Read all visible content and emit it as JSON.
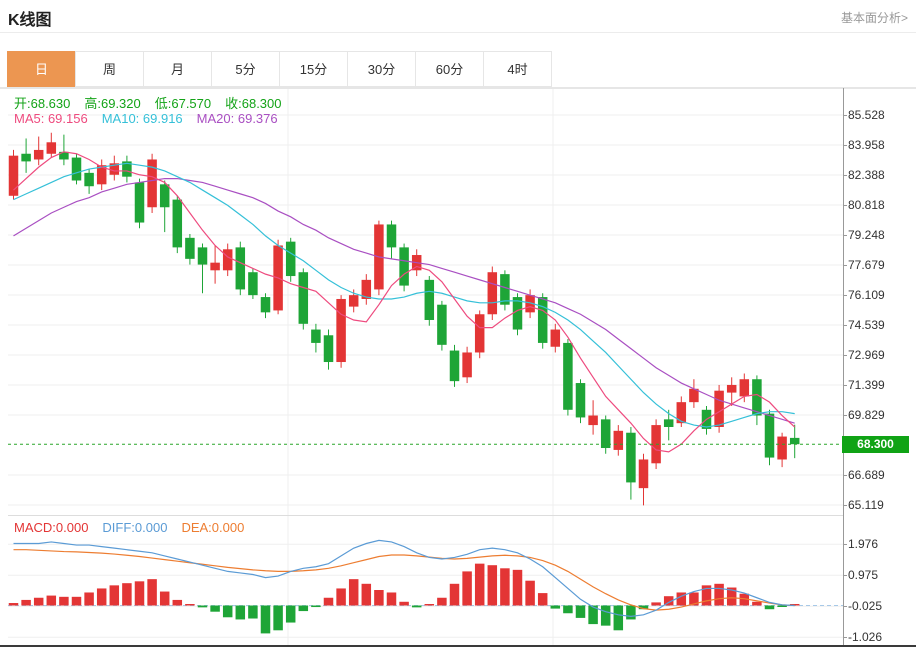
{
  "header": {
    "title": "K线图",
    "link": "基本面分析>"
  },
  "tabs": [
    {
      "name": "tab-day",
      "label": "日",
      "active": true
    },
    {
      "name": "tab-week",
      "label": "周",
      "active": false
    },
    {
      "name": "tab-month",
      "label": "月",
      "active": false
    },
    {
      "name": "tab-5min",
      "label": "5分",
      "active": false
    },
    {
      "name": "tab-15min",
      "label": "15分",
      "active": false
    },
    {
      "name": "tab-30min",
      "label": "30分",
      "active": false
    },
    {
      "name": "tab-60min",
      "label": "60分",
      "active": false
    },
    {
      "name": "tab-4hour",
      "label": "4时",
      "active": false
    }
  ],
  "legends": {
    "ohlc": [
      {
        "name": "ohlc-open",
        "text": "开:68.630",
        "color": "#13A317"
      },
      {
        "name": "ohlc-high",
        "text": "高:69.320",
        "color": "#13A317"
      },
      {
        "name": "ohlc-low",
        "text": "低:67.570",
        "color": "#13A317"
      },
      {
        "name": "ohlc-close",
        "text": "收:68.300",
        "color": "#13A317"
      }
    ],
    "ma": [
      {
        "name": "ma5-legend",
        "text": "MA5: 69.156",
        "color": "#EE4B7F"
      },
      {
        "name": "ma10-legend",
        "text": "MA10: 69.916",
        "color": "#35C0D8"
      },
      {
        "name": "ma20-legend",
        "text": "MA20: 69.376",
        "color": "#A94FC2"
      }
    ],
    "macd": [
      {
        "name": "macd-legend",
        "text": "MACD:0.000",
        "color": "#E33535"
      },
      {
        "name": "diff-legend",
        "text": "DIFF:0.000",
        "color": "#5B9BD5"
      },
      {
        "name": "dea-legend",
        "text": "DEA:0.000",
        "color": "#ED7D31"
      }
    ]
  },
  "price_axis": {
    "ticks": [
      85.528,
      83.958,
      82.388,
      80.818,
      79.248,
      77.679,
      76.109,
      74.539,
      72.969,
      71.399,
      69.829,
      66.689,
      65.119
    ],
    "current_label": "68.300",
    "current_value": 68.3
  },
  "macd_axis": {
    "ticks": [
      1.976,
      0.975,
      -0.025,
      -1.026
    ]
  },
  "colors": {
    "up": "#E33535",
    "down": "#1EA537",
    "ma5": "#EE4B7F",
    "ma10": "#35C0D8",
    "ma20": "#A94FC2",
    "diff": "#5B9BD5",
    "dea": "#ED7D31",
    "accent": "#EC9651",
    "grid": "#EFEFEF",
    "axis": "#999999",
    "dotted_price": "#2AA52A",
    "macd_zero": "#A7C9E8",
    "label_bg": "#10A315"
  },
  "chart_data": {
    "type": "candlestick",
    "title": "K线图",
    "interval": "日",
    "ohlc_last": {
      "open": 68.63,
      "high": 69.32,
      "low": 67.57,
      "close": 68.3
    },
    "ma_last": {
      "ma5": 69.156,
      "ma10": 69.916,
      "ma20": 69.376
    },
    "macd_last": {
      "macd": 0.0,
      "diff": 0.0,
      "dea": 0.0
    },
    "ylim_main": [
      64.6,
      86.3
    ],
    "ylim_macd": [
      -1.36,
      2.31
    ],
    "current_price": 68.3,
    "candles": [
      [
        81.3,
        83.7,
        81.1,
        83.4
      ],
      [
        83.5,
        84.3,
        82.5,
        83.1
      ],
      [
        83.2,
        84.4,
        82.9,
        83.7
      ],
      [
        83.5,
        84.6,
        83.3,
        84.1
      ],
      [
        83.6,
        84.5,
        82.9,
        83.2
      ],
      [
        83.3,
        83.5,
        81.9,
        82.1
      ],
      [
        82.5,
        82.7,
        81.4,
        81.8
      ],
      [
        81.9,
        83.2,
        81.6,
        82.9
      ],
      [
        82.4,
        83.4,
        82.1,
        83.0
      ],
      [
        83.1,
        83.4,
        82.0,
        82.3
      ],
      [
        82.0,
        82.2,
        79.6,
        79.9
      ],
      [
        80.7,
        83.5,
        80.4,
        83.2
      ],
      [
        81.9,
        82.1,
        79.4,
        80.7
      ],
      [
        81.1,
        81.3,
        78.3,
        78.6
      ],
      [
        79.1,
        79.3,
        77.7,
        78.0
      ],
      [
        78.6,
        78.8,
        76.2,
        77.7
      ],
      [
        77.4,
        78.7,
        76.7,
        77.8
      ],
      [
        77.4,
        78.8,
        77.1,
        78.5
      ],
      [
        78.6,
        78.9,
        76.1,
        76.4
      ],
      [
        77.3,
        77.5,
        75.9,
        76.1
      ],
      [
        76.0,
        76.2,
        74.9,
        75.2
      ],
      [
        75.3,
        79.0,
        75.1,
        78.7
      ],
      [
        78.9,
        79.1,
        76.8,
        77.1
      ],
      [
        77.3,
        77.5,
        74.3,
        74.6
      ],
      [
        74.3,
        74.6,
        73.1,
        73.6
      ],
      [
        74.0,
        74.3,
        72.2,
        72.6
      ],
      [
        72.6,
        76.1,
        72.3,
        75.9
      ],
      [
        75.5,
        76.4,
        75.2,
        76.1
      ],
      [
        75.9,
        77.2,
        75.6,
        76.9
      ],
      [
        76.4,
        80.0,
        76.1,
        79.8
      ],
      [
        79.8,
        80.0,
        78.0,
        78.6
      ],
      [
        78.6,
        78.8,
        76.3,
        76.6
      ],
      [
        77.4,
        78.5,
        77.1,
        78.2
      ],
      [
        76.9,
        77.1,
        74.5,
        74.8
      ],
      [
        75.6,
        75.8,
        73.2,
        73.5
      ],
      [
        73.2,
        73.5,
        71.3,
        71.6
      ],
      [
        71.8,
        73.4,
        71.5,
        73.1
      ],
      [
        73.1,
        75.3,
        72.8,
        75.1
      ],
      [
        75.1,
        77.6,
        74.8,
        77.3
      ],
      [
        77.2,
        77.4,
        75.3,
        75.6
      ],
      [
        76.0,
        76.2,
        74.0,
        74.3
      ],
      [
        75.2,
        76.4,
        74.9,
        76.1
      ],
      [
        76.0,
        76.2,
        73.3,
        73.6
      ],
      [
        73.4,
        74.6,
        73.1,
        74.3
      ],
      [
        73.6,
        73.8,
        69.8,
        70.1
      ],
      [
        71.5,
        71.7,
        69.4,
        69.7
      ],
      [
        69.3,
        70.6,
        68.8,
        69.8
      ],
      [
        69.6,
        69.8,
        67.8,
        68.1
      ],
      [
        68.0,
        69.3,
        67.7,
        69.0
      ],
      [
        68.9,
        69.2,
        65.4,
        66.3
      ],
      [
        66.0,
        67.8,
        65.1,
        67.5
      ],
      [
        67.3,
        69.6,
        67.0,
        69.3
      ],
      [
        69.6,
        70.1,
        68.5,
        69.2
      ],
      [
        69.4,
        70.8,
        69.2,
        70.5
      ],
      [
        70.5,
        71.7,
        70.2,
        71.2
      ],
      [
        70.1,
        70.3,
        68.8,
        69.1
      ],
      [
        69.2,
        71.4,
        68.9,
        71.1
      ],
      [
        71.0,
        71.8,
        70.3,
        71.4
      ],
      [
        70.8,
        72.0,
        70.5,
        71.7
      ],
      [
        71.7,
        71.9,
        69.3,
        69.8
      ],
      [
        69.9,
        70.1,
        67.2,
        67.6
      ],
      [
        67.5,
        68.9,
        67.1,
        68.7
      ],
      [
        68.63,
        69.32,
        67.57,
        68.3
      ]
    ],
    "ma5": [
      81.6,
      82.2,
      82.8,
      83.3,
      83.6,
      83.5,
      83.2,
      82.8,
      82.6,
      82.6,
      82.4,
      82.3,
      82.0,
      81.3,
      80.4,
      79.5,
      78.7,
      78.1,
      77.8,
      77.5,
      77.2,
      77.0,
      76.7,
      76.5,
      76.3,
      75.7,
      75.1,
      74.8,
      74.7,
      75.6,
      76.6,
      77.2,
      77.6,
      77.4,
      76.8,
      75.9,
      75.0,
      74.4,
      74.4,
      74.9,
      75.3,
      75.5,
      75.3,
      74.8,
      73.9,
      72.8,
      71.8,
      70.8,
      70.1,
      69.4,
      68.6,
      68.0,
      67.9,
      68.3,
      69.0,
      69.6,
      70.0,
      70.4,
      70.8,
      70.9,
      70.5,
      69.8,
      69.2
    ],
    "ma10": [
      81.1,
      81.4,
      81.7,
      82.0,
      82.3,
      82.5,
      82.7,
      82.8,
      82.9,
      83.0,
      82.9,
      82.8,
      82.6,
      82.3,
      82.0,
      81.6,
      81.2,
      80.8,
      80.3,
      79.8,
      79.2,
      78.7,
      78.3,
      77.9,
      77.4,
      76.9,
      76.5,
      76.2,
      76.0,
      75.9,
      75.9,
      76.0,
      76.2,
      76.3,
      76.2,
      76.0,
      75.8,
      75.7,
      75.7,
      75.8,
      75.8,
      75.7,
      75.5,
      75.2,
      74.8,
      74.3,
      73.7,
      73.1,
      72.4,
      71.7,
      71.0,
      70.4,
      69.9,
      69.5,
      69.3,
      69.2,
      69.3,
      69.5,
      69.7,
      69.9,
      70.0,
      70.0,
      69.9
    ],
    "ma20": [
      79.2,
      79.6,
      80.0,
      80.4,
      80.7,
      81.0,
      81.2,
      81.5,
      81.7,
      81.9,
      82.0,
      82.1,
      82.2,
      82.2,
      82.1,
      82.0,
      81.8,
      81.6,
      81.4,
      81.2,
      80.9,
      80.5,
      80.2,
      79.8,
      79.5,
      79.1,
      78.8,
      78.5,
      78.3,
      78.1,
      78.0,
      77.9,
      77.8,
      77.7,
      77.5,
      77.3,
      77.1,
      76.9,
      76.7,
      76.5,
      76.3,
      76.1,
      75.9,
      75.7,
      75.4,
      75.1,
      74.7,
      74.3,
      73.8,
      73.3,
      72.8,
      72.3,
      71.9,
      71.5,
      71.2,
      70.9,
      70.6,
      70.4,
      70.2,
      70.0,
      69.8,
      69.6,
      69.4
    ],
    "macd": {
      "hist": [
        0.08,
        0.18,
        0.25,
        0.32,
        0.28,
        0.28,
        0.42,
        0.55,
        0.65,
        0.72,
        0.78,
        0.85,
        0.45,
        0.18,
        0.04,
        -0.06,
        -0.2,
        -0.38,
        -0.45,
        -0.42,
        -0.9,
        -0.8,
        -0.55,
        -0.18,
        -0.05,
        0.25,
        0.55,
        0.85,
        0.7,
        0.5,
        0.42,
        0.12,
        -0.06,
        0.04,
        0.25,
        0.7,
        1.1,
        1.35,
        1.3,
        1.2,
        1.15,
        0.8,
        0.4,
        -0.1,
        -0.25,
        -0.4,
        -0.6,
        -0.65,
        -0.8,
        -0.45,
        -0.12,
        0.1,
        0.3,
        0.42,
        0.42,
        0.65,
        0.7,
        0.58,
        0.38,
        0.12,
        -0.12,
        -0.03,
        0.0
      ],
      "diff": [
        2.0,
        2.0,
        2.0,
        2.05,
        2.0,
        1.95,
        1.95,
        1.9,
        1.85,
        1.8,
        1.75,
        1.7,
        1.6,
        1.5,
        1.4,
        1.3,
        1.2,
        1.1,
        1.05,
        1.0,
        0.9,
        0.95,
        1.1,
        1.2,
        1.25,
        1.35,
        1.6,
        1.85,
        2.0,
        2.1,
        2.05,
        1.9,
        1.7,
        1.55,
        1.5,
        1.55,
        1.65,
        1.8,
        1.85,
        1.8,
        1.7,
        1.5,
        1.25,
        0.9,
        0.55,
        0.2,
        -0.05,
        -0.2,
        -0.3,
        -0.35,
        -0.3,
        -0.15,
        0.1,
        0.3,
        0.45,
        0.55,
        0.55,
        0.5,
        0.4,
        0.25,
        0.1,
        0.02,
        0.0
      ],
      "dea": [
        1.8,
        1.8,
        1.78,
        1.76,
        1.74,
        1.73,
        1.71,
        1.69,
        1.66,
        1.62,
        1.58,
        1.53,
        1.48,
        1.43,
        1.38,
        1.33,
        1.28,
        1.23,
        1.19,
        1.15,
        1.12,
        1.1,
        1.1,
        1.12,
        1.15,
        1.2,
        1.28,
        1.38,
        1.48,
        1.58,
        1.63,
        1.63,
        1.6,
        1.56,
        1.52,
        1.5,
        1.52,
        1.56,
        1.6,
        1.62,
        1.6,
        1.55,
        1.45,
        1.3,
        1.1,
        0.85,
        0.6,
        0.38,
        0.18,
        0.02,
        -0.1,
        -0.15,
        -0.12,
        -0.05,
        0.05,
        0.15,
        0.22,
        0.25,
        0.22,
        0.15,
        0.08,
        0.02,
        0.0
      ]
    }
  }
}
